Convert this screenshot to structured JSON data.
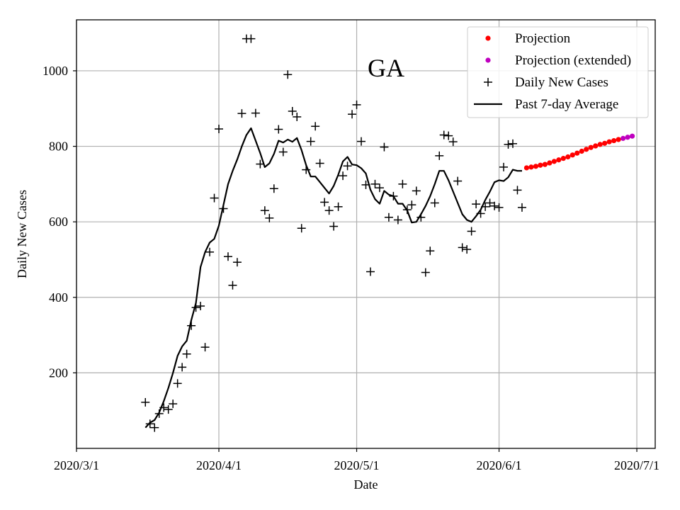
{
  "chart_data": {
    "type": "scatter",
    "title": "GA",
    "xlabel": "Date",
    "ylabel": "Daily New Cases",
    "x_ticks": [
      "2020/3/1",
      "2020/4/1",
      "2020/5/1",
      "2020/6/1",
      "2020/7/1"
    ],
    "y_ticks": [
      200,
      400,
      600,
      800,
      1000
    ],
    "xlim": [
      "2020/3/1",
      "2020/7/5"
    ],
    "ylim": [
      0,
      1135
    ],
    "grid": true,
    "legend_position": "top-right",
    "legend": [
      {
        "label": "Projection",
        "marker": "dot",
        "color": "#ff0000"
      },
      {
        "label": "Projection (extended)",
        "marker": "dot",
        "color": "#bf00bf"
      },
      {
        "label": "Daily New Cases",
        "marker": "plus",
        "color": "#000000"
      },
      {
        "label": "Past 7-day Average",
        "marker": "line",
        "color": "#000000"
      }
    ],
    "series": [
      {
        "name": "Daily New Cases",
        "marker": "plus",
        "color": "#000000",
        "x": [
          "2020/3/16",
          "2020/3/17",
          "2020/3/18",
          "2020/3/19",
          "2020/3/20",
          "2020/3/21",
          "2020/3/22",
          "2020/3/23",
          "2020/3/24",
          "2020/3/25",
          "2020/3/26",
          "2020/3/27",
          "2020/3/28",
          "2020/3/29",
          "2020/3/30",
          "2020/3/31",
          "2020/4/1",
          "2020/4/2",
          "2020/4/3",
          "2020/4/4",
          "2020/4/5",
          "2020/4/6",
          "2020/4/7",
          "2020/4/8",
          "2020/4/9",
          "2020/4/10",
          "2020/4/11",
          "2020/4/12",
          "2020/4/13",
          "2020/4/14",
          "2020/4/15",
          "2020/4/16",
          "2020/4/17",
          "2020/4/18",
          "2020/4/19",
          "2020/4/20",
          "2020/4/21",
          "2020/4/22",
          "2020/4/23",
          "2020/4/24",
          "2020/4/25",
          "2020/4/26",
          "2020/4/27",
          "2020/4/28",
          "2020/4/29",
          "2020/4/30",
          "2020/5/1",
          "2020/5/2",
          "2020/5/3",
          "2020/5/4",
          "2020/5/5",
          "2020/5/6",
          "2020/5/7",
          "2020/5/8",
          "2020/5/9",
          "2020/5/10",
          "2020/5/11",
          "2020/5/12",
          "2020/5/13",
          "2020/5/14",
          "2020/5/15",
          "2020/5/16",
          "2020/5/17",
          "2020/5/18",
          "2020/5/19",
          "2020/5/20",
          "2020/5/21",
          "2020/5/22",
          "2020/5/23",
          "2020/5/24",
          "2020/5/25",
          "2020/5/26",
          "2020/5/27",
          "2020/5/28",
          "2020/5/29",
          "2020/5/30",
          "2020/5/31",
          "2020/6/1",
          "2020/6/2",
          "2020/6/3",
          "2020/6/4",
          "2020/6/5",
          "2020/6/6"
        ],
        "y": [
          122,
          65,
          55,
          92,
          108,
          103,
          118,
          172,
          215,
          250,
          325,
          373,
          377,
          268,
          520,
          663,
          846,
          635,
          508,
          432,
          493,
          887,
          1085,
          1085,
          888,
          753,
          630,
          610,
          688,
          845,
          785,
          990,
          893,
          878,
          583,
          738,
          813,
          853,
          755,
          652,
          630,
          588,
          640,
          722,
          748,
          885,
          910,
          813,
          698,
          468,
          700,
          690,
          798,
          612,
          668,
          605,
          700,
          632,
          645,
          682,
          612,
          466,
          523,
          650,
          775,
          830,
          828,
          812,
          708,
          532,
          527,
          575,
          647,
          622,
          640,
          650,
          642,
          638,
          745,
          805,
          807,
          684,
          638
        ]
      },
      {
        "name": "Past 7-day Average",
        "marker": "line",
        "color": "#000000",
        "x": [
          "2020/3/16",
          "2020/3/17",
          "2020/3/18",
          "2020/3/19",
          "2020/3/20",
          "2020/3/21",
          "2020/3/22",
          "2020/3/23",
          "2020/3/24",
          "2020/3/25",
          "2020/3/26",
          "2020/3/27",
          "2020/3/28",
          "2020/3/29",
          "2020/3/30",
          "2020/3/31",
          "2020/4/1",
          "2020/4/2",
          "2020/4/3",
          "2020/4/4",
          "2020/4/5",
          "2020/4/6",
          "2020/4/7",
          "2020/4/8",
          "2020/4/9",
          "2020/4/10",
          "2020/4/11",
          "2020/4/12",
          "2020/4/13",
          "2020/4/14",
          "2020/4/15",
          "2020/4/16",
          "2020/4/17",
          "2020/4/18",
          "2020/4/19",
          "2020/4/20",
          "2020/4/21",
          "2020/4/22",
          "2020/4/23",
          "2020/4/24",
          "2020/4/25",
          "2020/4/26",
          "2020/4/27",
          "2020/4/28",
          "2020/4/29",
          "2020/4/30",
          "2020/5/1",
          "2020/5/2",
          "2020/5/3",
          "2020/5/4",
          "2020/5/5",
          "2020/5/6",
          "2020/5/7",
          "2020/5/8",
          "2020/5/9",
          "2020/5/10",
          "2020/5/11",
          "2020/5/12",
          "2020/5/13",
          "2020/5/14",
          "2020/5/15",
          "2020/5/16",
          "2020/5/17",
          "2020/5/18",
          "2020/5/19",
          "2020/5/20",
          "2020/5/21",
          "2020/5/22",
          "2020/5/23",
          "2020/5/24",
          "2020/5/25",
          "2020/5/26",
          "2020/5/27",
          "2020/5/28",
          "2020/5/29",
          "2020/5/30",
          "2020/5/31",
          "2020/6/1",
          "2020/6/2",
          "2020/6/3",
          "2020/6/4",
          "2020/6/5",
          "2020/6/6"
        ],
        "y": [
          55,
          68,
          75,
          95,
          125,
          160,
          200,
          245,
          270,
          285,
          340,
          385,
          480,
          520,
          545,
          555,
          590,
          645,
          700,
          735,
          765,
          800,
          830,
          848,
          815,
          782,
          745,
          755,
          780,
          815,
          810,
          818,
          812,
          822,
          790,
          750,
          720,
          720,
          705,
          690,
          675,
          695,
          725,
          760,
          772,
          752,
          750,
          742,
          728,
          685,
          660,
          648,
          682,
          672,
          668,
          648,
          648,
          630,
          598,
          600,
          620,
          642,
          668,
          700,
          735,
          735,
          710,
          680,
          650,
          620,
          605,
          600,
          615,
          632,
          658,
          680,
          705,
          710,
          708,
          718,
          738,
          735,
          735
        ]
      },
      {
        "name": "Projection",
        "marker": "dot",
        "color": "#ff0000",
        "x": [
          "2020/6/7",
          "2020/6/8",
          "2020/6/9",
          "2020/6/10",
          "2020/6/11",
          "2020/6/12",
          "2020/6/13",
          "2020/6/14",
          "2020/6/15",
          "2020/6/16",
          "2020/6/17",
          "2020/6/18",
          "2020/6/19",
          "2020/6/20",
          "2020/6/21",
          "2020/6/22",
          "2020/6/23",
          "2020/6/24",
          "2020/6/25",
          "2020/6/26",
          "2020/6/27"
        ],
        "y": [
          743,
          745,
          747,
          750,
          752,
          756,
          760,
          764,
          768,
          772,
          777,
          782,
          787,
          792,
          797,
          801,
          805,
          808,
          812,
          815,
          818
        ]
      },
      {
        "name": "Projection (extended)",
        "marker": "dot",
        "color": "#bf00bf",
        "x": [
          "2020/6/28",
          "2020/6/29",
          "2020/6/30"
        ],
        "y": [
          821,
          824,
          827
        ]
      }
    ]
  }
}
